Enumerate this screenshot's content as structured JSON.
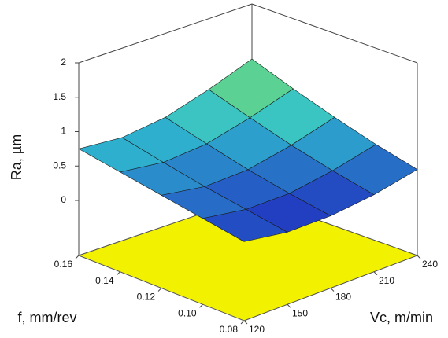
{
  "chart_data": {
    "type": "surface",
    "x_label": "Vc, m/min",
    "y_label": "f, mm/rev",
    "z_label": "Ra, µm",
    "x": [
      120,
      150,
      180,
      210,
      240
    ],
    "y": [
      0.08,
      0.1,
      0.12,
      0.14,
      0.16
    ],
    "z": [
      [
        0.35,
        0.25,
        0.25,
        0.32,
        0.45
      ],
      [
        0.45,
        0.35,
        0.35,
        0.45,
        0.6
      ],
      [
        0.55,
        0.45,
        0.47,
        0.6,
        0.78
      ],
      [
        0.65,
        0.57,
        0.62,
        0.78,
        0.98
      ],
      [
        0.75,
        0.7,
        0.78,
        0.97,
        1.2
      ]
    ],
    "xlim": [
      120,
      240
    ],
    "ylim": [
      0.08,
      0.16
    ],
    "zlim": [
      -0.8,
      2
    ],
    "xticks": [
      120,
      150,
      180,
      210,
      240
    ],
    "yticks": [
      0.08,
      {
        "value": 0.1,
        "label": "0.10"
      },
      0.12,
      0.14,
      0.16
    ],
    "zticks": [
      0,
      0.5,
      1,
      1.5,
      2
    ],
    "floor_color": "#f2f200"
  }
}
